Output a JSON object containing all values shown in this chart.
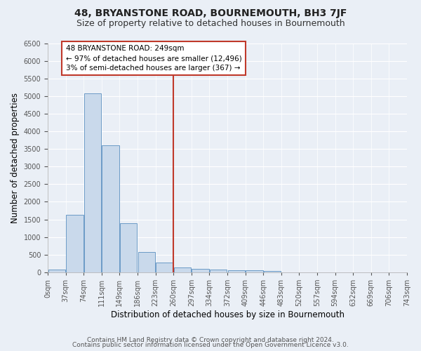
{
  "title": "48, BRYANSTONE ROAD, BOURNEMOUTH, BH3 7JF",
  "subtitle": "Size of property relative to detached houses in Bournemouth",
  "xlabel": "Distribution of detached houses by size in Bournemouth",
  "ylabel": "Number of detached properties",
  "bin_labels": [
    "0sqm",
    "37sqm",
    "74sqm",
    "111sqm",
    "149sqm",
    "186sqm",
    "223sqm",
    "260sqm",
    "297sqm",
    "334sqm",
    "372sqm",
    "409sqm",
    "446sqm",
    "483sqm",
    "520sqm",
    "557sqm",
    "594sqm",
    "632sqm",
    "669sqm",
    "706sqm",
    "743sqm"
  ],
  "bar_heights": [
    75,
    1625,
    5075,
    3600,
    1400,
    575,
    280,
    140,
    100,
    70,
    55,
    50,
    40,
    0,
    0,
    0,
    0,
    0,
    0,
    0
  ],
  "bar_color": "#c9d9eb",
  "bar_edge_color": "#5a8fc0",
  "vline_x_index": 7,
  "vline_color": "#c0392b",
  "annotation_title": "48 BRYANSTONE ROAD: 249sqm",
  "annotation_line1": "← 97% of detached houses are smaller (12,496)",
  "annotation_line2": "3% of semi-detached houses are larger (367) →",
  "annotation_box_color": "#c0392b",
  "ylim": [
    0,
    6500
  ],
  "yticks": [
    0,
    500,
    1000,
    1500,
    2000,
    2500,
    3000,
    3500,
    4000,
    4500,
    5000,
    5500,
    6000,
    6500
  ],
  "footnote1": "Contains HM Land Registry data © Crown copyright and database right 2024.",
  "footnote2": "Contains public sector information licensed under the Open Government Licence v3.0.",
  "bg_color": "#eaeff6",
  "plot_bg_color": "#eaeff6",
  "title_fontsize": 10,
  "subtitle_fontsize": 9,
  "axis_label_fontsize": 8.5,
  "tick_fontsize": 7,
  "footnote_fontsize": 6.5,
  "annotation_fontsize": 7.5
}
